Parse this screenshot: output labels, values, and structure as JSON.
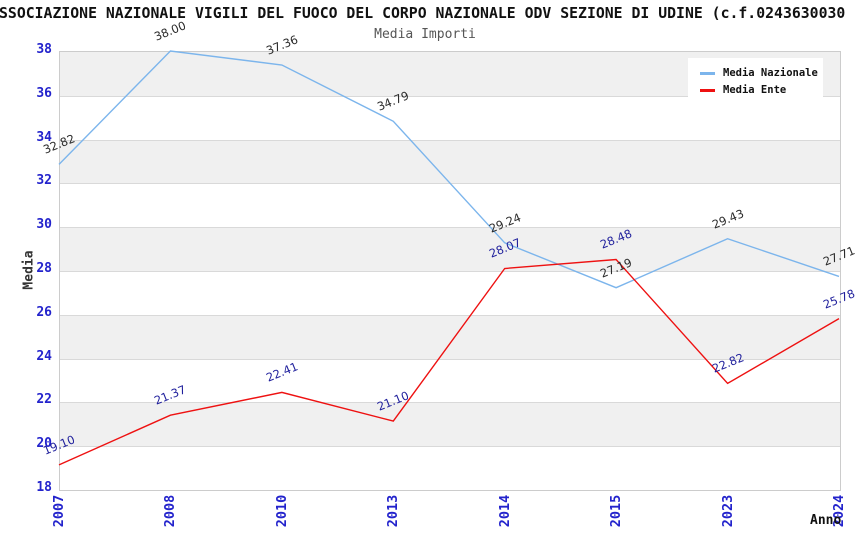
{
  "page": {
    "title": "SSOCIAZIONE NAZIONALE VIGILI DEL FUOCO DEL CORPO NAZIONALE ODV SEZIONE DI UDINE (c.f.0243630030"
  },
  "chart_data": {
    "type": "line",
    "title": "Media Importi",
    "xlabel": "Anno",
    "ylabel": "Media",
    "categories": [
      "2007",
      "2008",
      "2010",
      "2013",
      "2014",
      "2015",
      "2023",
      "2024"
    ],
    "series": [
      {
        "name": "Media Nazionale",
        "color": "#7cb5ec",
        "label_color": "#2b2b2b",
        "values": [
          32.82,
          38.0,
          37.36,
          34.79,
          29.24,
          27.19,
          29.43,
          27.71
        ]
      },
      {
        "name": "Media Ente",
        "color": "#ee1111",
        "label_color": "#1f1f9c",
        "values": [
          19.1,
          21.37,
          22.41,
          21.1,
          28.07,
          28.48,
          22.82,
          25.78
        ]
      }
    ],
    "ylim": [
      18,
      38
    ],
    "yticks": [
      38,
      36,
      34,
      32,
      30,
      28,
      26,
      24,
      22,
      20,
      18
    ],
    "grid": true,
    "legend_position": "top-right",
    "band_color": "#f0f0f0",
    "grid_color": "#d9d9d9",
    "plot_border_color": "#cccccc",
    "tick_label_color": "#2323cc",
    "value_label_rotation_deg": -22,
    "xtick_rotation_deg": -90
  }
}
